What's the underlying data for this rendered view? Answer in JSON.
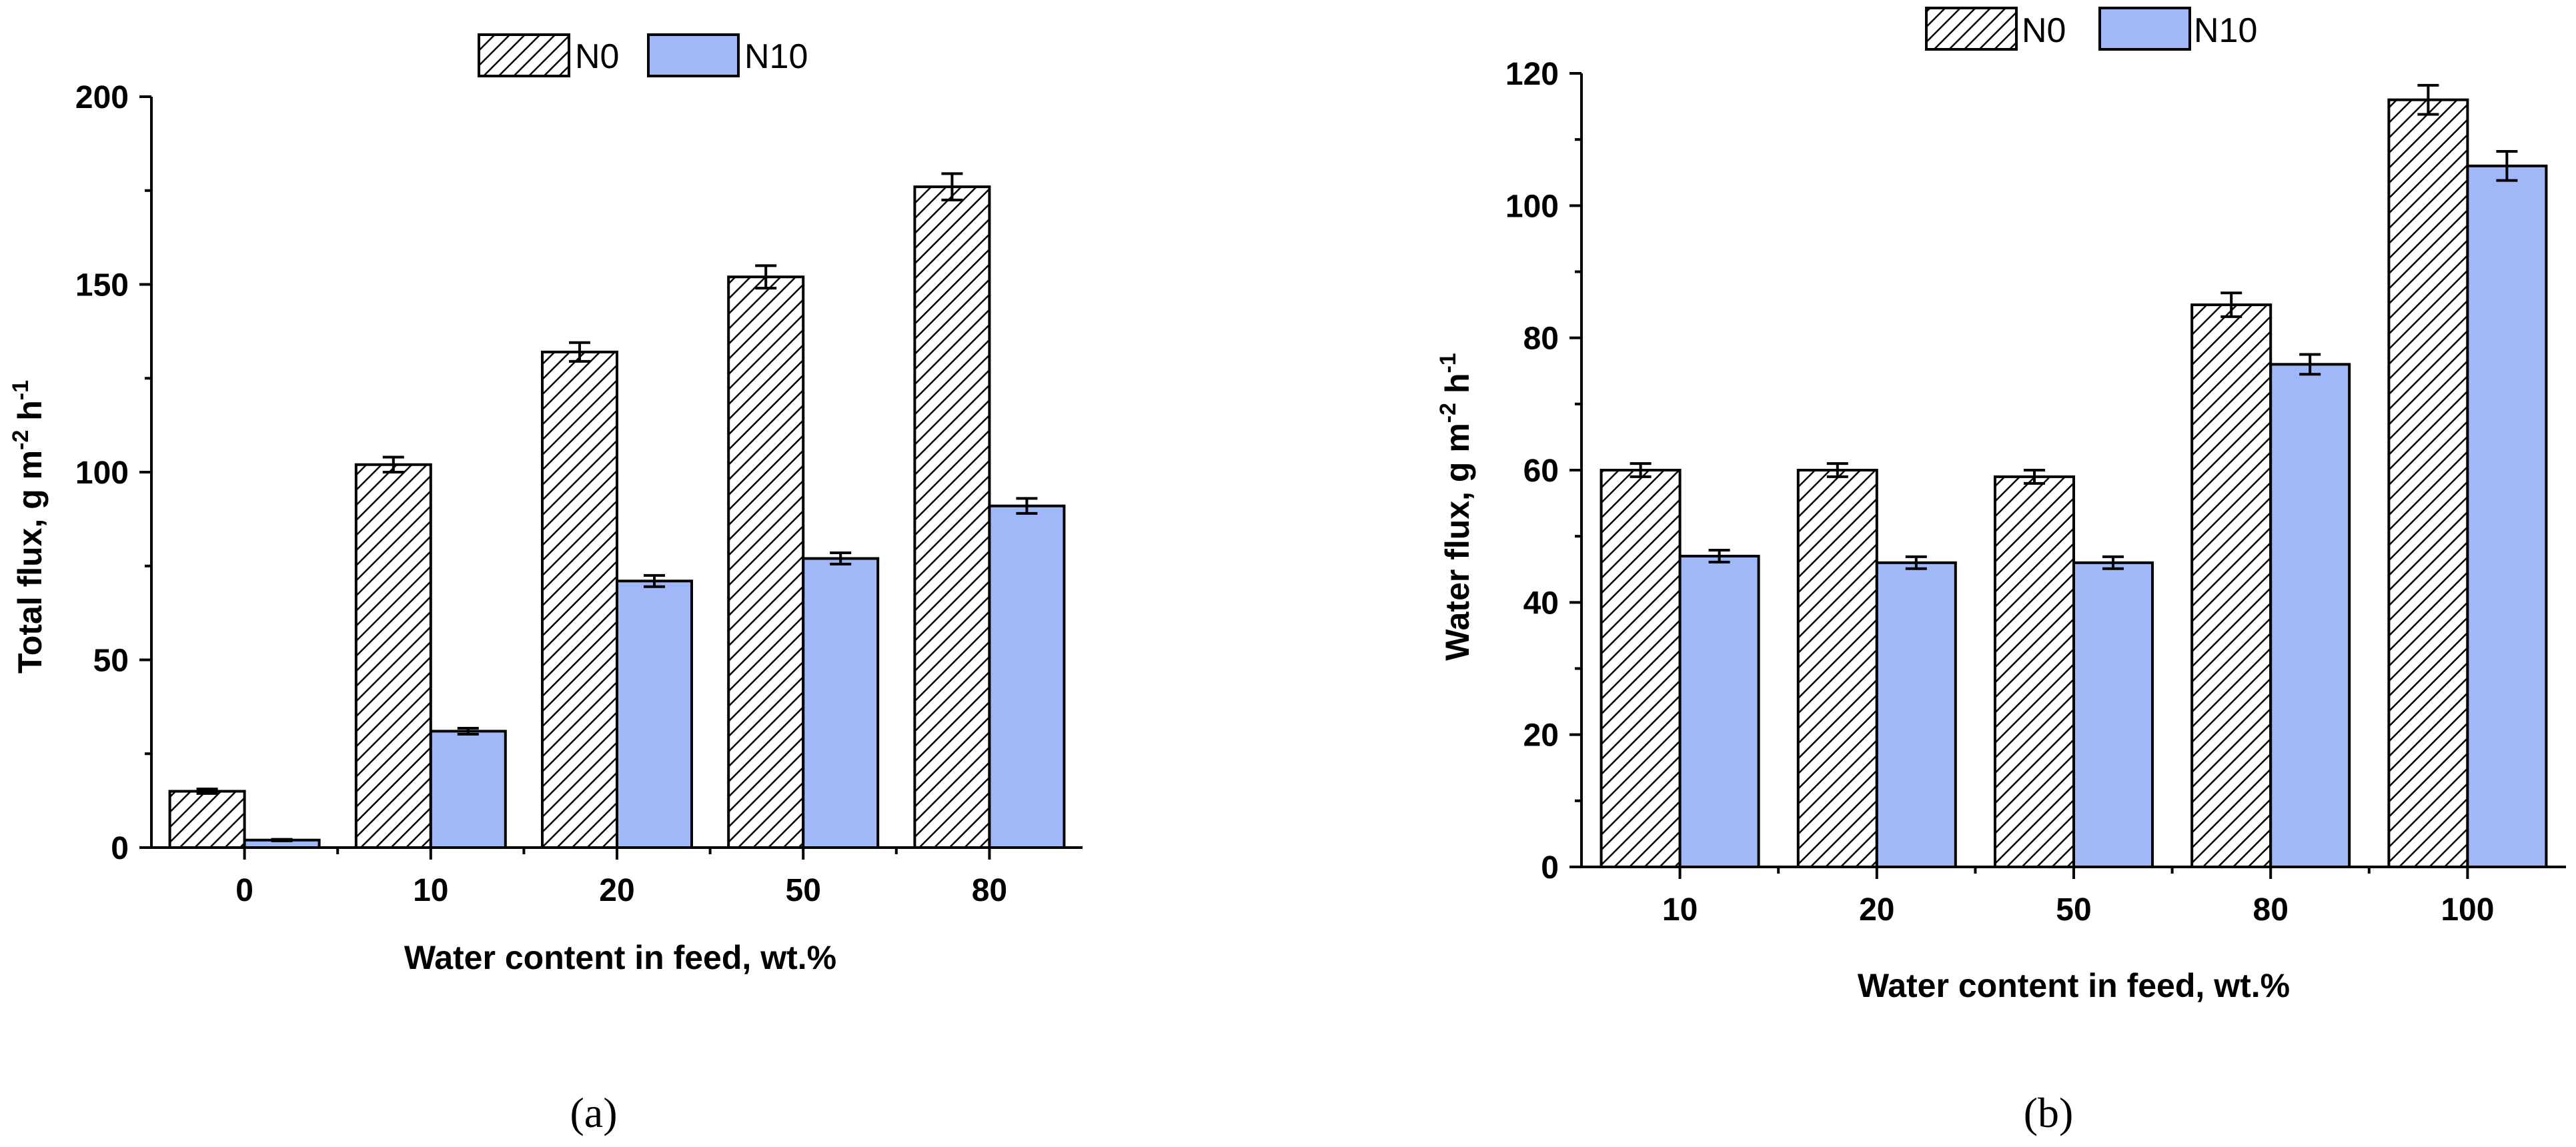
{
  "colors": {
    "n0_fill": "#ffffff",
    "n0_hatch": "#000000",
    "n10_fill": "#a0b8f8",
    "stroke": "#000000"
  },
  "chart_data": [
    {
      "type": "bar",
      "panel_label": "(a)",
      "categories": [
        "0",
        "10",
        "20",
        "50",
        "80"
      ],
      "series": [
        {
          "name": "N0",
          "pattern": "hatched",
          "values": [
            15,
            102,
            132,
            152,
            176
          ],
          "errors": [
            0.6,
            2.0,
            2.5,
            3.0,
            3.5
          ]
        },
        {
          "name": "N10",
          "pattern": "solid",
          "values": [
            2,
            31,
            71,
            77,
            91
          ],
          "errors": [
            0.2,
            0.8,
            1.5,
            1.5,
            2.0
          ]
        }
      ],
      "xlabel": "Water content in feed, wt.%",
      "ylabel_main": "Total flux, g m",
      "ylabel_exp1": "-2",
      "ylabel_mid": " h",
      "ylabel_exp2": "-1",
      "ylim": [
        0,
        200
      ],
      "yticks": [
        "0",
        "50",
        "100",
        "150",
        "200"
      ],
      "legend": [
        "N0",
        "N10"
      ]
    },
    {
      "type": "bar",
      "panel_label": "(b)",
      "categories": [
        "10",
        "20",
        "50",
        "80",
        "100"
      ],
      "series": [
        {
          "name": "N0",
          "pattern": "hatched",
          "values": [
            60,
            60,
            59,
            85,
            116
          ],
          "errors": [
            1.0,
            1.0,
            1.0,
            1.8,
            2.2
          ]
        },
        {
          "name": "N10",
          "pattern": "solid",
          "values": [
            47,
            46,
            46,
            76,
            106
          ],
          "errors": [
            0.9,
            0.9,
            0.9,
            1.5,
            2.2
          ]
        }
      ],
      "xlabel": "Water content in feed, wt.%",
      "ylabel_main": "Water flux, g m",
      "ylabel_exp1": "-2",
      "ylabel_mid": " h",
      "ylabel_exp2": "-1",
      "ylim": [
        0,
        120
      ],
      "yticks": [
        "0",
        "20",
        "40",
        "60",
        "80",
        "100",
        "120"
      ],
      "legend": [
        "N0",
        "N10"
      ]
    }
  ]
}
